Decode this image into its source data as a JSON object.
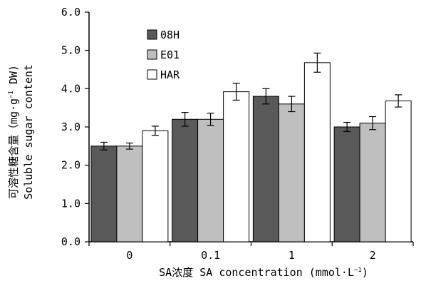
{
  "chart_data": {
    "type": "bar",
    "categories": [
      "0",
      "0.1",
      "1",
      "2"
    ],
    "series": [
      {
        "name": "08H",
        "color": "#595959",
        "values": [
          2.5,
          3.2,
          3.8,
          3.0
        ],
        "errors": [
          0.1,
          0.18,
          0.2,
          0.12
        ]
      },
      {
        "name": "E01",
        "color": "#bfbfbf",
        "values": [
          2.5,
          3.2,
          3.6,
          3.1
        ],
        "errors": [
          0.08,
          0.16,
          0.2,
          0.17
        ]
      },
      {
        "name": "HAR",
        "color": "#ffffff",
        "values": [
          2.9,
          3.92,
          4.68,
          3.68
        ],
        "errors": [
          0.12,
          0.22,
          0.25,
          0.16
        ]
      }
    ],
    "ylim": [
      0,
      6
    ],
    "yticks": [
      "0.0",
      "1.0",
      "2.0",
      "3.0",
      "4.0",
      "5.0",
      "6.0"
    ],
    "ylabel_cn": "可溶性糖含量（mg·g",
    "ylabel_sup": "−1",
    "ylabel_unit_end": " DW)",
    "ylabel_en": "Soluble sugar content",
    "xlabel": "SA浓度 SA concentration (mmol·L",
    "xlabel_sup": "−1",
    "xlabel_end": ")",
    "legend_position": "top-left",
    "grid": false
  }
}
